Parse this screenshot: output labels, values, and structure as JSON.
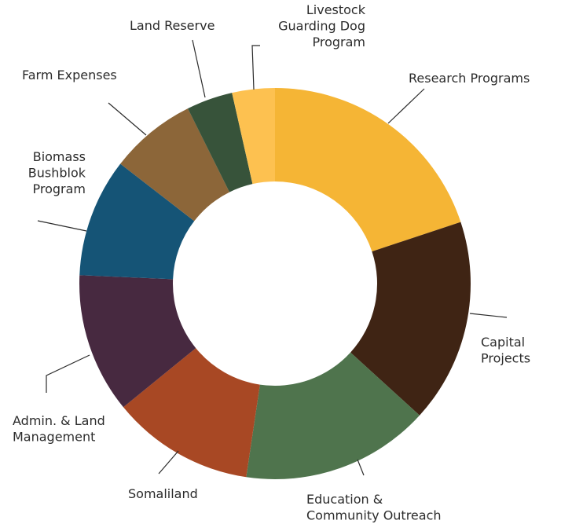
{
  "chart_data": {
    "type": "pie",
    "donut": true,
    "slices": [
      {
        "label": "Research  Programs",
        "lines": [
          "Research  Programs"
        ],
        "value": 20.3,
        "color": "#F5B535"
      },
      {
        "label": "Capital Projects",
        "lines": [
          "Capital",
          "Projects"
        ],
        "value": 17.2,
        "color": "#3F2414"
      },
      {
        "label": "Education & Community Outreach",
        "lines": [
          "Education &",
          "Community Outreach"
        ],
        "value": 15.9,
        "color": "#4F744D"
      },
      {
        "label": "Somaliland",
        "lines": [
          "Somaliland"
        ],
        "value": 12.0,
        "color": "#A84824"
      },
      {
        "label": "Admin. & Land Management",
        "lines": [
          "Admin. & Land",
          "Management"
        ],
        "value": 11.8,
        "color": "#472940"
      },
      {
        "label": "Biomass Bushblok Program",
        "lines": [
          "Biomass",
          "Bushblok",
          "Program"
        ],
        "value": 10.0,
        "color": "#155476"
      },
      {
        "label": "Farm Expenses",
        "lines": [
          "Farm Expenses"
        ],
        "value": 7.3,
        "color": "#8C6639"
      },
      {
        "label": "Land Reserve",
        "lines": [
          "Land Reserve"
        ],
        "value": 3.9,
        "color": "#37533A"
      },
      {
        "label": "Livestock Guarding Dog Program",
        "lines": [
          "Livestock",
          "Guarding Dog",
          "Program"
        ],
        "value": 3.6,
        "color": "#FDC150"
      }
    ]
  }
}
